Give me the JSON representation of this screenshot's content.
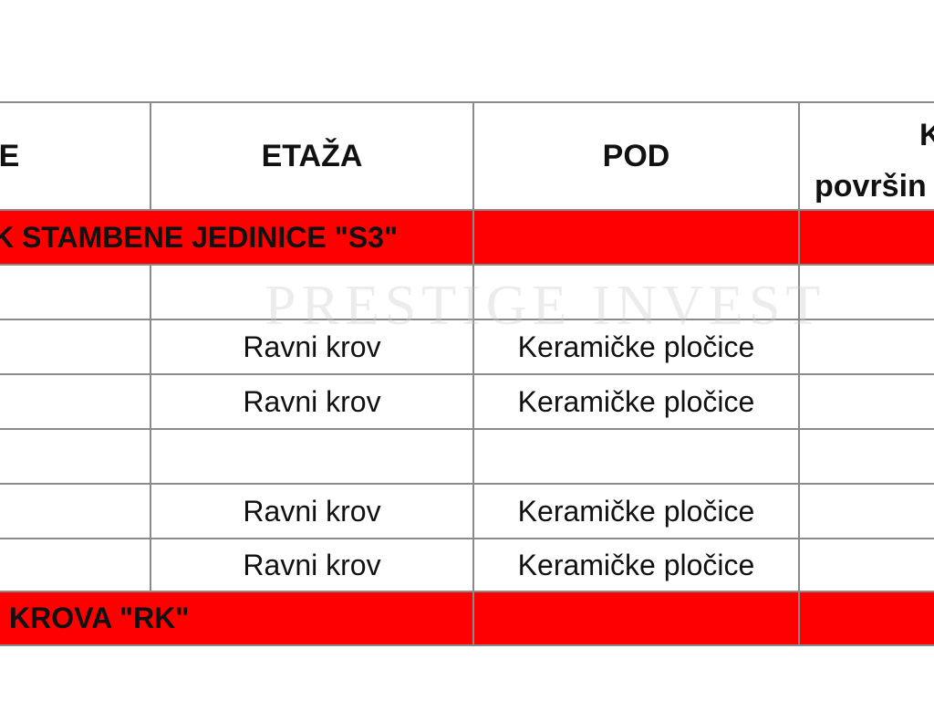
{
  "table": {
    "headers": [
      "E",
      "ETAŽA",
      "POD",
      "K",
      "površin"
    ],
    "sections": [
      {
        "label": "K STAMBENE JEDINICE \"S3\""
      },
      {
        "label": "KROVA \"RK\""
      }
    ],
    "rows": [
      {
        "etaza": "",
        "pod": ""
      },
      {
        "etaza": "Ravni krov",
        "pod": "Keramičke pločice"
      },
      {
        "etaza": "Ravni krov",
        "pod": "Keramičke pločice"
      },
      {
        "etaza": "",
        "pod": ""
      },
      {
        "etaza": "Ravni krov",
        "pod": "Keramičke pločice"
      },
      {
        "etaza": "Ravni krov",
        "pod": "Keramičke pločice"
      }
    ]
  },
  "watermark": "PRESTIGE INVEST",
  "colors": {
    "section_row": "#fe0000",
    "grid": "#8a8a8a"
  }
}
